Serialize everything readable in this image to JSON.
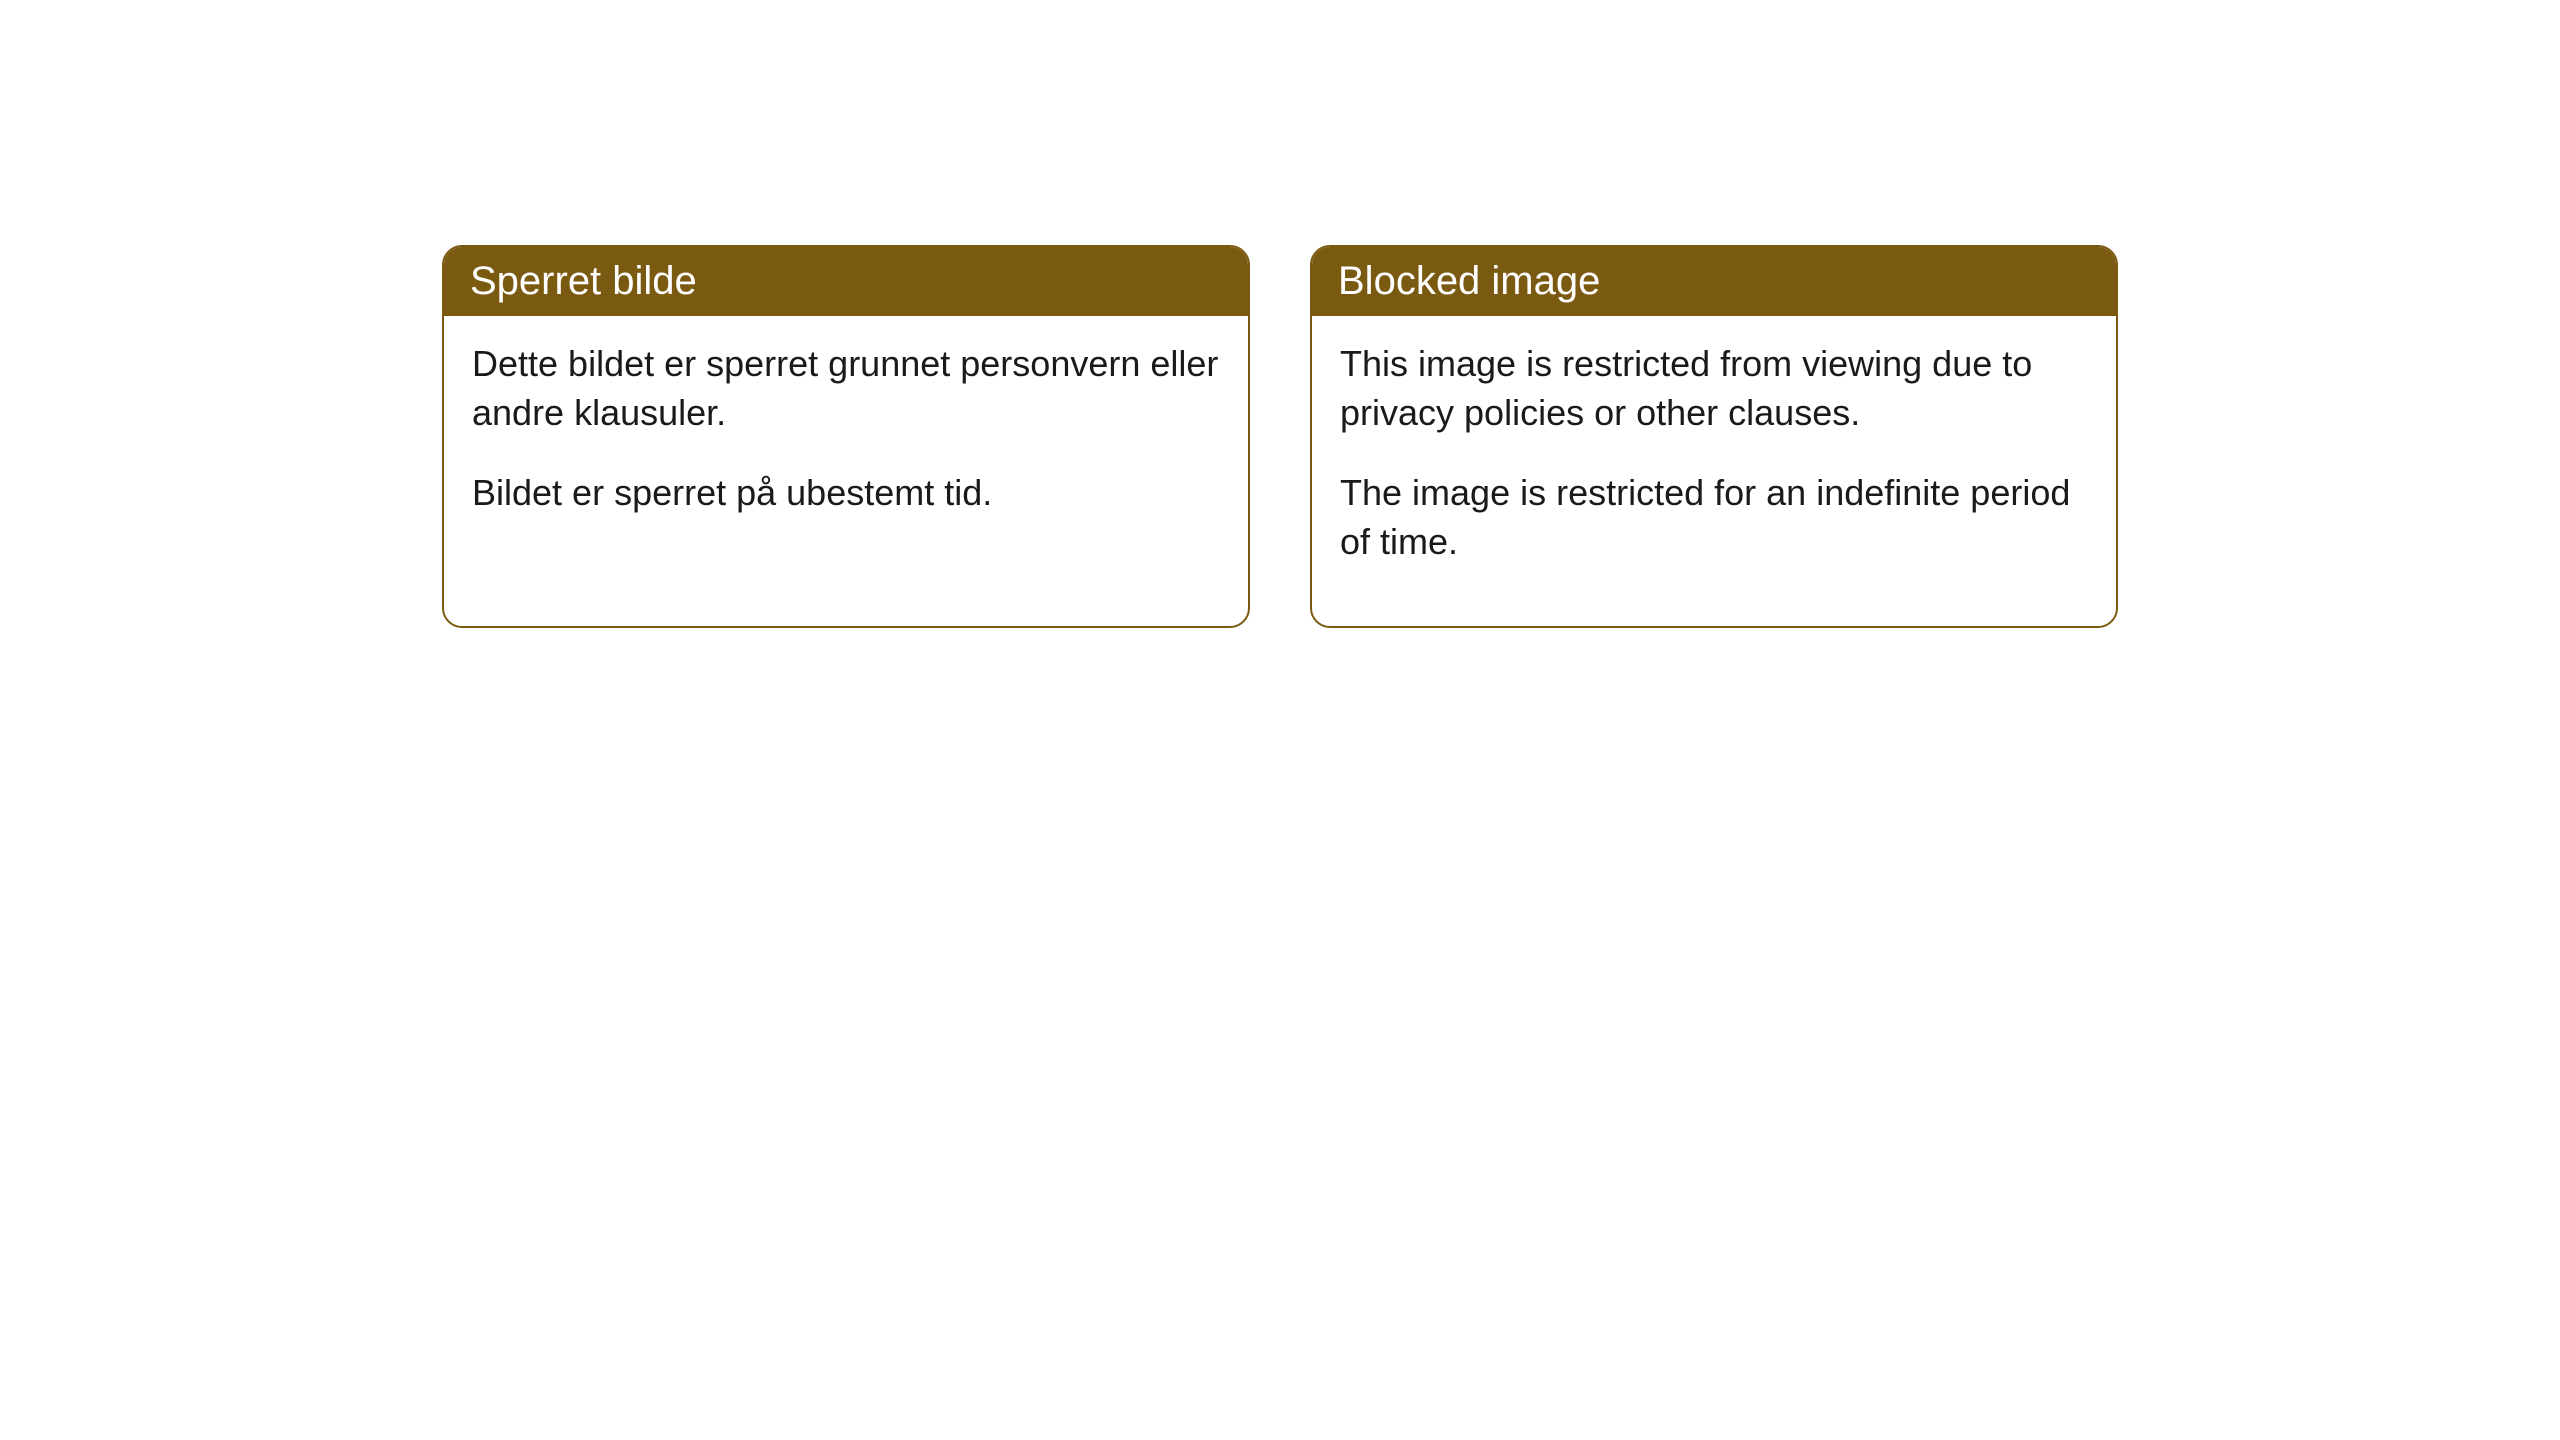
{
  "cards": {
    "left": {
      "title": "Sperret bilde",
      "paragraph1": "Dette bildet er sperret grunnet personvern eller andre klausuler.",
      "paragraph2": "Bildet er sperret på ubestemt tid."
    },
    "right": {
      "title": "Blocked image",
      "paragraph1": "This image is restricted from viewing due to privacy policies or other clauses.",
      "paragraph2": "The image is restricted for an indefinite period of time."
    }
  },
  "style": {
    "header_background": "#7a5a11",
    "header_text_color": "#ffffff",
    "border_color": "#7a5a11",
    "body_text_color": "#1a1a1a",
    "background_color": "#ffffff",
    "border_radius": 20,
    "header_fontsize": 40,
    "body_fontsize": 36
  }
}
